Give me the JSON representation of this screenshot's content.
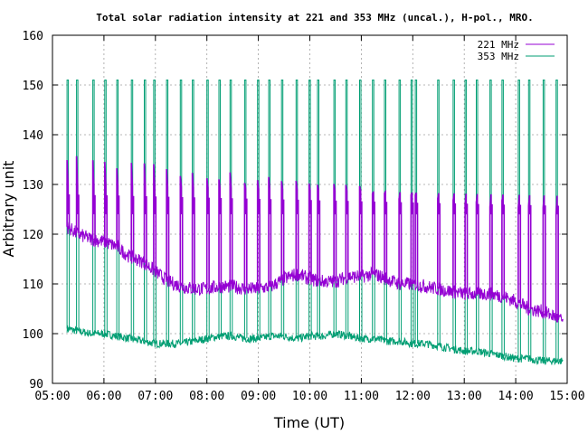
{
  "chart_data": {
    "type": "line",
    "title": "Total solar radiation intensity at 221 and 353 MHz (uncal.), H-pol., MRO.",
    "xlabel": "Time (UT)",
    "ylabel": "Arbitrary unit",
    "xlim": [
      "05:00",
      "15:00"
    ],
    "ylim": [
      90,
      160
    ],
    "x_ticks": [
      "05:00",
      "06:00",
      "07:00",
      "08:00",
      "09:00",
      "10:00",
      "11:00",
      "12:00",
      "13:00",
      "14:00",
      "15:00"
    ],
    "y_ticks": [
      90,
      100,
      110,
      120,
      130,
      140,
      150,
      160
    ],
    "grid": true,
    "legend_position": "top-right",
    "calibration_spikes": {
      "times": [
        "05:17",
        "05:28",
        "05:47",
        "06:01",
        "06:15",
        "06:32",
        "06:47",
        "06:58",
        "07:13",
        "07:29",
        "07:43",
        "08:00",
        "08:14",
        "08:27",
        "08:44",
        "08:59",
        "09:12",
        "09:27",
        "09:44",
        "09:59",
        "10:09",
        "10:28",
        "10:42",
        "10:58",
        "11:13",
        "11:27",
        "11:44",
        "11:58",
        "12:03",
        "12:29",
        "12:47",
        "13:01",
        "13:14",
        "13:30",
        "13:44",
        "14:03",
        "14:15",
        "14:32",
        "14:47"
      ],
      "note": ""
    },
    "series": [
      {
        "name": "221 MHz",
        "color": "#9400d3",
        "baseline": [
          [
            "05:17",
            121.5
          ],
          [
            "05:30",
            120.0
          ],
          [
            "05:45",
            119.0
          ],
          [
            "06:00",
            118.5
          ],
          [
            "06:15",
            117.5
          ],
          [
            "06:30",
            115.5
          ],
          [
            "06:45",
            114.5
          ],
          [
            "07:00",
            112.5
          ],
          [
            "07:15",
            110.5
          ],
          [
            "07:30",
            109.5
          ],
          [
            "07:45",
            109.0
          ],
          [
            "08:00",
            109.0
          ],
          [
            "08:15",
            109.5
          ],
          [
            "08:30",
            109.5
          ],
          [
            "08:45",
            109.0
          ],
          [
            "09:00",
            109.0
          ],
          [
            "09:15",
            109.5
          ],
          [
            "09:30",
            111.0
          ],
          [
            "09:45",
            112.0
          ],
          [
            "10:00",
            111.0
          ],
          [
            "10:15",
            110.5
          ],
          [
            "10:30",
            110.5
          ],
          [
            "10:45",
            111.5
          ],
          [
            "11:00",
            111.5
          ],
          [
            "11:15",
            112.0
          ],
          [
            "11:30",
            111.0
          ],
          [
            "11:45",
            110.0
          ],
          [
            "12:00",
            110.0
          ],
          [
            "12:15",
            109.5
          ],
          [
            "12:30",
            109.0
          ],
          [
            "12:45",
            108.5
          ],
          [
            "13:00",
            108.0
          ],
          [
            "13:15",
            108.0
          ],
          [
            "13:30",
            108.0
          ],
          [
            "13:45",
            107.5
          ],
          [
            "14:00",
            106.5
          ],
          [
            "14:15",
            105.0
          ],
          [
            "14:30",
            104.5
          ],
          [
            "14:45",
            103.5
          ],
          [
            "14:55",
            102.5
          ]
        ],
        "spike_top": 135,
        "spike_plateau_high": 130,
        "spike_plateau_low": 124
      },
      {
        "name": "353 MHz",
        "color": "#009e73",
        "baseline": [
          [
            "05:17",
            101.0
          ],
          [
            "05:30",
            100.5
          ],
          [
            "05:45",
            100.0
          ],
          [
            "06:00",
            100.0
          ],
          [
            "06:15",
            99.5
          ],
          [
            "06:30",
            99.0
          ],
          [
            "06:45",
            98.5
          ],
          [
            "07:00",
            98.0
          ],
          [
            "07:15",
            98.0
          ],
          [
            "07:30",
            98.0
          ],
          [
            "07:45",
            98.5
          ],
          [
            "08:00",
            99.0
          ],
          [
            "08:15",
            99.5
          ],
          [
            "08:30",
            99.5
          ],
          [
            "08:45",
            99.0
          ],
          [
            "09:00",
            99.0
          ],
          [
            "09:15",
            99.5
          ],
          [
            "09:30",
            99.5
          ],
          [
            "09:45",
            99.0
          ],
          [
            "10:00",
            99.5
          ],
          [
            "10:15",
            99.5
          ],
          [
            "10:30",
            100.0
          ],
          [
            "10:45",
            99.5
          ],
          [
            "11:00",
            99.0
          ],
          [
            "11:15",
            99.0
          ],
          [
            "11:30",
            98.5
          ],
          [
            "11:45",
            98.5
          ],
          [
            "12:00",
            98.0
          ],
          [
            "12:15",
            98.0
          ],
          [
            "12:30",
            97.5
          ],
          [
            "12:45",
            97.0
          ],
          [
            "13:00",
            96.5
          ],
          [
            "13:15",
            96.5
          ],
          [
            "13:30",
            96.0
          ],
          [
            "13:45",
            95.5
          ],
          [
            "14:00",
            95.0
          ],
          [
            "14:15",
            95.0
          ],
          [
            "14:30",
            94.5
          ],
          [
            "14:45",
            94.5
          ],
          [
            "14:55",
            94.5
          ]
        ],
        "spike_top": 151,
        "spike_plateau_high": 126,
        "spike_plateau_low": 124
      }
    ]
  }
}
